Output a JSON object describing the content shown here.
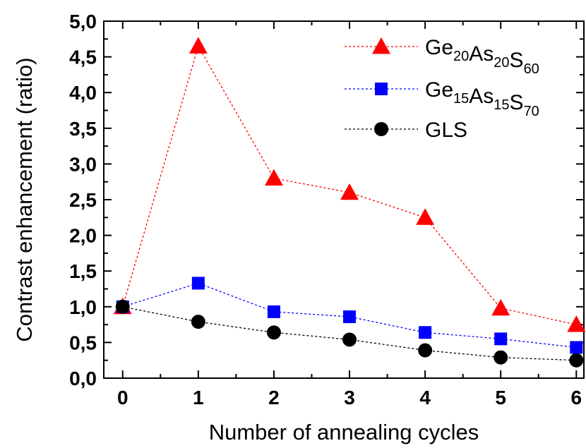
{
  "chart_data": {
    "type": "line",
    "xlabel": "Number of annealing cycles",
    "ylabel": "Contrast enhancement (ratio)",
    "xlim": [
      -0.25,
      6.1
    ],
    "ylim": [
      0,
      5
    ],
    "x_ticks": [
      "0",
      "1",
      "2",
      "3",
      "4",
      "5",
      "6"
    ],
    "y_ticks": [
      "0,0",
      "0,5",
      "1,0",
      "1,5",
      "2,0",
      "2,5",
      "3,0",
      "3,5",
      "4,0",
      "4,5",
      "5,0"
    ],
    "legend_position": "top-right",
    "series": [
      {
        "name": "Ge20As20S60",
        "name_parts": [
          [
            "Ge",
            "20"
          ],
          [
            "As",
            "20"
          ],
          [
            "S",
            "60"
          ]
        ],
        "marker": "triangle",
        "color": "#ff0000",
        "x": [
          0,
          1,
          2,
          3,
          4,
          5,
          6
        ],
        "values": [
          1.0,
          4.65,
          2.8,
          2.6,
          2.25,
          0.98,
          0.75
        ]
      },
      {
        "name": "Ge15As15S70",
        "name_parts": [
          [
            "Ge",
            "15"
          ],
          [
            "As",
            "15"
          ],
          [
            "S",
            "70"
          ]
        ],
        "marker": "square",
        "color": "#0000ff",
        "x": [
          0,
          1,
          2,
          3,
          4,
          5,
          6
        ],
        "values": [
          1.0,
          1.33,
          0.93,
          0.86,
          0.64,
          0.55,
          0.43
        ]
      },
      {
        "name": "GLS",
        "name_parts": [
          [
            "GLS",
            ""
          ]
        ],
        "marker": "circle",
        "color": "#000000",
        "x": [
          0,
          1,
          2,
          3,
          4,
          5,
          6
        ],
        "values": [
          1.0,
          0.79,
          0.64,
          0.54,
          0.39,
          0.29,
          0.25
        ]
      }
    ]
  }
}
